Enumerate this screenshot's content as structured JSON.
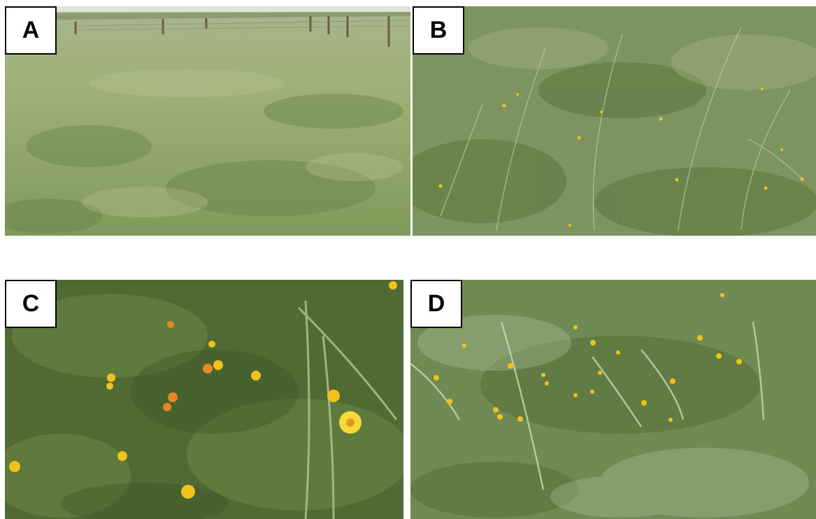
{
  "panels": {
    "a": {
      "label": "A"
    },
    "b": {
      "label": "B"
    },
    "c": {
      "label": "C"
    },
    "d": {
      "label": "D"
    }
  },
  "colors": {
    "label_background": "#ffffff",
    "label_border": "#000000",
    "grass_light": "#9fb37a",
    "grass_dark": "#4f6b33",
    "flower_yellow": "#f2c21b",
    "flower_orange": "#e8872a"
  }
}
